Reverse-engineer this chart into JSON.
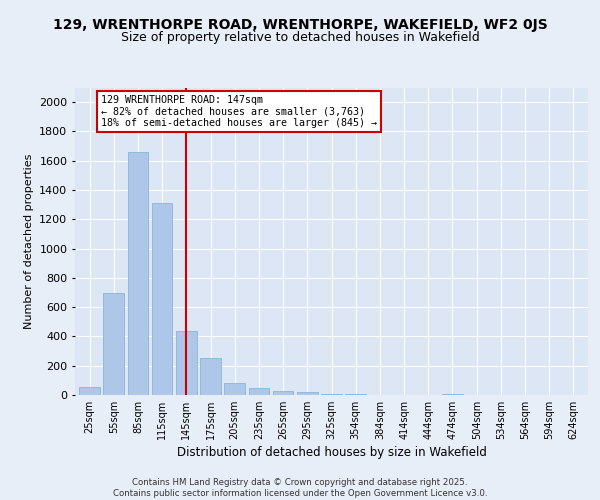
{
  "title1": "129, WRENTHORPE ROAD, WRENTHORPE, WAKEFIELD, WF2 0JS",
  "title2": "Size of property relative to detached houses in Wakefield",
  "xlabel": "Distribution of detached houses by size in Wakefield",
  "ylabel": "Number of detached properties",
  "categories": [
    "25sqm",
    "55sqm",
    "85sqm",
    "115sqm",
    "145sqm",
    "175sqm",
    "205sqm",
    "235sqm",
    "265sqm",
    "295sqm",
    "325sqm",
    "354sqm",
    "384sqm",
    "414sqm",
    "444sqm",
    "474sqm",
    "504sqm",
    "534sqm",
    "564sqm",
    "594sqm",
    "624sqm"
  ],
  "values": [
    55,
    700,
    1660,
    1310,
    435,
    250,
    85,
    45,
    25,
    18,
    10,
    5,
    0,
    0,
    0,
    10,
    0,
    0,
    0,
    0,
    0
  ],
  "bar_color": "#aec6e8",
  "bar_edge_color": "#7bafd4",
  "vline_x": 4,
  "vline_label": "129 WRENTHORPE ROAD: 147sqm",
  "annotation_line1": "← 82% of detached houses are smaller (3,763)",
  "annotation_line2": "18% of semi-detached houses are larger (845) →",
  "annotation_box_color": "#ffffff",
  "annotation_box_edge": "#cc0000",
  "vline_color": "#cc0000",
  "ylim": [
    0,
    2100
  ],
  "yticks": [
    0,
    200,
    400,
    600,
    800,
    1000,
    1200,
    1400,
    1600,
    1800,
    2000
  ],
  "bg_color": "#e8eef7",
  "plot_bg_color": "#dce6f5",
  "footer": "Contains HM Land Registry data © Crown copyright and database right 2025.\nContains public sector information licensed under the Open Government Licence v3.0.",
  "title_fontsize": 10,
  "subtitle_fontsize": 9
}
